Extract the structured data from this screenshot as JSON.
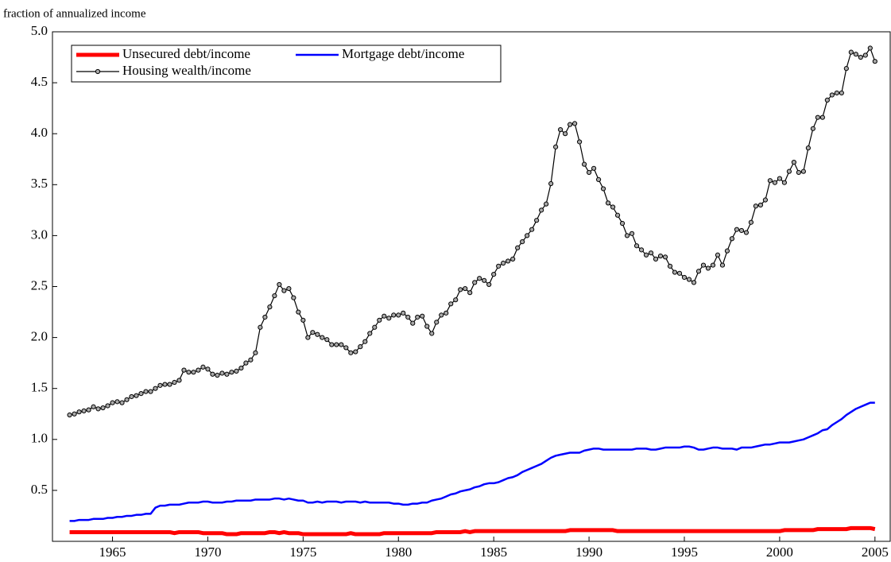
{
  "chart_data": {
    "type": "line",
    "ylabel": "fraction of annualized income",
    "x": [
      1962.75,
      1963,
      1963.25,
      1963.5,
      1963.75,
      1964,
      1964.25,
      1964.5,
      1964.75,
      1965,
      1965.25,
      1965.5,
      1965.75,
      1966,
      1966.25,
      1966.5,
      1966.75,
      1967,
      1967.25,
      1967.5,
      1967.75,
      1968,
      1968.25,
      1968.5,
      1968.75,
      1969,
      1969.25,
      1969.5,
      1969.75,
      1970,
      1970.25,
      1970.5,
      1970.75,
      1971,
      1971.25,
      1971.5,
      1971.75,
      1972,
      1972.25,
      1972.5,
      1972.75,
      1973,
      1973.25,
      1973.5,
      1973.75,
      1974,
      1974.25,
      1974.5,
      1974.75,
      1975,
      1975.25,
      1975.5,
      1975.75,
      1976,
      1976.25,
      1976.5,
      1976.75,
      1977,
      1977.25,
      1977.5,
      1977.75,
      1978,
      1978.25,
      1978.5,
      1978.75,
      1979,
      1979.25,
      1979.5,
      1979.75,
      1980,
      1980.25,
      1980.5,
      1980.75,
      1981,
      1981.25,
      1981.5,
      1981.75,
      1982,
      1982.25,
      1982.5,
      1982.75,
      1983,
      1983.25,
      1983.5,
      1983.75,
      1984,
      1984.25,
      1984.5,
      1984.75,
      1985,
      1985.25,
      1985.5,
      1985.75,
      1986,
      1986.25,
      1986.5,
      1986.75,
      1987,
      1987.25,
      1987.5,
      1987.75,
      1988,
      1988.25,
      1988.5,
      1988.75,
      1989,
      1989.25,
      1989.5,
      1989.75,
      1990,
      1990.25,
      1990.5,
      1990.75,
      1991,
      1991.25,
      1991.5,
      1991.75,
      1992,
      1992.25,
      1992.5,
      1992.75,
      1993,
      1993.25,
      1993.5,
      1993.75,
      1994,
      1994.25,
      1994.5,
      1994.75,
      1995,
      1995.25,
      1995.5,
      1995.75,
      1996,
      1996.25,
      1996.5,
      1996.75,
      1997,
      1997.25,
      1997.5,
      1997.75,
      1998,
      1998.25,
      1998.5,
      1998.75,
      1999,
      1999.25,
      1999.5,
      1999.75,
      2000,
      2000.25,
      2000.5,
      2000.75,
      2001,
      2001.25,
      2001.5,
      2001.75,
      2002,
      2002.25,
      2002.5,
      2002.75,
      2003,
      2003.25,
      2003.5,
      2003.75,
      2004,
      2004.25,
      2004.5,
      2004.75,
      2005
    ],
    "series": [
      {
        "name": "Unsecured debt/income",
        "color": "#ff0000",
        "linewidth": 5,
        "values": [
          0.09,
          0.09,
          0.09,
          0.09,
          0.09,
          0.09,
          0.09,
          0.09,
          0.09,
          0.09,
          0.09,
          0.09,
          0.09,
          0.09,
          0.09,
          0.09,
          0.09,
          0.09,
          0.09,
          0.09,
          0.09,
          0.09,
          0.08,
          0.09,
          0.09,
          0.09,
          0.09,
          0.09,
          0.08,
          0.08,
          0.08,
          0.08,
          0.08,
          0.07,
          0.07,
          0.07,
          0.08,
          0.08,
          0.08,
          0.08,
          0.08,
          0.08,
          0.09,
          0.09,
          0.08,
          0.09,
          0.08,
          0.08,
          0.08,
          0.07,
          0.07,
          0.07,
          0.07,
          0.07,
          0.07,
          0.07,
          0.07,
          0.07,
          0.07,
          0.08,
          0.07,
          0.07,
          0.07,
          0.07,
          0.07,
          0.07,
          0.08,
          0.08,
          0.08,
          0.08,
          0.08,
          0.08,
          0.08,
          0.08,
          0.08,
          0.08,
          0.08,
          0.09,
          0.09,
          0.09,
          0.09,
          0.09,
          0.09,
          0.1,
          0.09,
          0.1,
          0.1,
          0.1,
          0.1,
          0.1,
          0.1,
          0.1,
          0.1,
          0.1,
          0.1,
          0.1,
          0.1,
          0.1,
          0.1,
          0.1,
          0.1,
          0.1,
          0.1,
          0.1,
          0.1,
          0.11,
          0.11,
          0.11,
          0.11,
          0.11,
          0.11,
          0.11,
          0.11,
          0.11,
          0.11,
          0.1,
          0.1,
          0.1,
          0.1,
          0.1,
          0.1,
          0.1,
          0.1,
          0.1,
          0.1,
          0.1,
          0.1,
          0.1,
          0.1,
          0.1,
          0.1,
          0.1,
          0.1,
          0.1,
          0.1,
          0.1,
          0.1,
          0.1,
          0.1,
          0.1,
          0.1,
          0.1,
          0.1,
          0.1,
          0.1,
          0.1,
          0.1,
          0.1,
          0.1,
          0.1,
          0.11,
          0.11,
          0.11,
          0.11,
          0.11,
          0.11,
          0.11,
          0.12,
          0.12,
          0.12,
          0.12,
          0.12,
          0.12,
          0.12,
          0.13,
          0.13,
          0.13,
          0.13,
          0.13,
          0.12
        ]
      },
      {
        "name": "Mortgage debt/income",
        "color": "#0000ff",
        "linewidth": 2.5,
        "values": [
          0.2,
          0.2,
          0.21,
          0.21,
          0.21,
          0.22,
          0.22,
          0.22,
          0.23,
          0.23,
          0.24,
          0.24,
          0.25,
          0.25,
          0.26,
          0.26,
          0.27,
          0.27,
          0.33,
          0.35,
          0.35,
          0.36,
          0.36,
          0.36,
          0.37,
          0.38,
          0.38,
          0.38,
          0.39,
          0.39,
          0.38,
          0.38,
          0.38,
          0.39,
          0.39,
          0.4,
          0.4,
          0.4,
          0.4,
          0.41,
          0.41,
          0.41,
          0.41,
          0.42,
          0.42,
          0.41,
          0.42,
          0.41,
          0.4,
          0.4,
          0.38,
          0.38,
          0.39,
          0.38,
          0.39,
          0.39,
          0.39,
          0.38,
          0.39,
          0.39,
          0.39,
          0.38,
          0.39,
          0.38,
          0.38,
          0.38,
          0.38,
          0.38,
          0.37,
          0.37,
          0.36,
          0.36,
          0.37,
          0.37,
          0.38,
          0.38,
          0.4,
          0.41,
          0.42,
          0.44,
          0.46,
          0.47,
          0.49,
          0.5,
          0.51,
          0.53,
          0.54,
          0.56,
          0.57,
          0.57,
          0.58,
          0.6,
          0.62,
          0.63,
          0.65,
          0.68,
          0.7,
          0.72,
          0.74,
          0.76,
          0.79,
          0.82,
          0.84,
          0.85,
          0.86,
          0.87,
          0.87,
          0.87,
          0.89,
          0.9,
          0.91,
          0.91,
          0.9,
          0.9,
          0.9,
          0.9,
          0.9,
          0.9,
          0.9,
          0.91,
          0.91,
          0.91,
          0.9,
          0.9,
          0.91,
          0.92,
          0.92,
          0.92,
          0.92,
          0.93,
          0.93,
          0.92,
          0.9,
          0.9,
          0.91,
          0.92,
          0.92,
          0.91,
          0.91,
          0.91,
          0.9,
          0.92,
          0.92,
          0.92,
          0.93,
          0.94,
          0.95,
          0.95,
          0.96,
          0.97,
          0.97,
          0.97,
          0.98,
          0.99,
          1.0,
          1.02,
          1.04,
          1.06,
          1.09,
          1.1,
          1.14,
          1.17,
          1.2,
          1.24,
          1.27,
          1.3,
          1.32,
          1.34,
          1.36,
          1.36
        ]
      },
      {
        "name": "Housing wealth/income",
        "color": "#000000",
        "linewidth": 1.2,
        "marker": "circle",
        "values": [
          1.24,
          1.25,
          1.27,
          1.28,
          1.29,
          1.32,
          1.3,
          1.31,
          1.33,
          1.36,
          1.37,
          1.36,
          1.39,
          1.42,
          1.43,
          1.45,
          1.47,
          1.47,
          1.5,
          1.53,
          1.54,
          1.54,
          1.56,
          1.58,
          1.68,
          1.66,
          1.66,
          1.68,
          1.71,
          1.69,
          1.64,
          1.63,
          1.65,
          1.64,
          1.66,
          1.67,
          1.7,
          1.75,
          1.78,
          1.85,
          2.1,
          2.2,
          2.3,
          2.41,
          2.52,
          2.46,
          2.48,
          2.39,
          2.25,
          2.17,
          2.0,
          2.05,
          2.03,
          2.0,
          1.98,
          1.93,
          1.93,
          1.93,
          1.9,
          1.85,
          1.86,
          1.91,
          1.96,
          2.04,
          2.1,
          2.17,
          2.21,
          2.19,
          2.22,
          2.22,
          2.24,
          2.2,
          2.14,
          2.2,
          2.21,
          2.11,
          2.04,
          2.15,
          2.22,
          2.24,
          2.33,
          2.37,
          2.47,
          2.48,
          2.44,
          2.54,
          2.58,
          2.56,
          2.52,
          2.62,
          2.7,
          2.73,
          2.75,
          2.77,
          2.88,
          2.94,
          3.0,
          3.06,
          3.15,
          3.25,
          3.31,
          3.51,
          3.87,
          4.04,
          4.0,
          4.09,
          4.1,
          3.92,
          3.7,
          3.62,
          3.66,
          3.55,
          3.46,
          3.32,
          3.28,
          3.2,
          3.12,
          3.0,
          3.02,
          2.9,
          2.86,
          2.81,
          2.83,
          2.77,
          2.8,
          2.79,
          2.7,
          2.64,
          2.63,
          2.59,
          2.57,
          2.54,
          2.65,
          2.71,
          2.68,
          2.71,
          2.81,
          2.71,
          2.85,
          2.97,
          3.06,
          3.05,
          3.03,
          3.13,
          3.29,
          3.3,
          3.35,
          3.54,
          3.52,
          3.56,
          3.52,
          3.63,
          3.72,
          3.62,
          3.63,
          3.86,
          4.05,
          4.16,
          4.16,
          4.33,
          4.38,
          4.4,
          4.4,
          4.64,
          4.8,
          4.78,
          4.75,
          4.77,
          4.84,
          4.71
        ]
      }
    ],
    "xlim": [
      1961.85,
      2005.8
    ],
    "xticks": [
      1965,
      1970,
      1975,
      1980,
      1985,
      1990,
      1995,
      2000,
      2005
    ],
    "ylim": [
      0,
      5
    ],
    "yticks": [
      0.5,
      {
        "value": 1,
        "label": "1.0"
      },
      1.5,
      {
        "value": 2,
        "label": "2.0"
      },
      2.5,
      {
        "value": 3,
        "label": "3.0"
      },
      3.5,
      {
        "value": 4,
        "label": "4.0"
      },
      4.5,
      {
        "value": 5,
        "label": "5.0"
      }
    ],
    "legend": "upper left",
    "grid": false
  }
}
